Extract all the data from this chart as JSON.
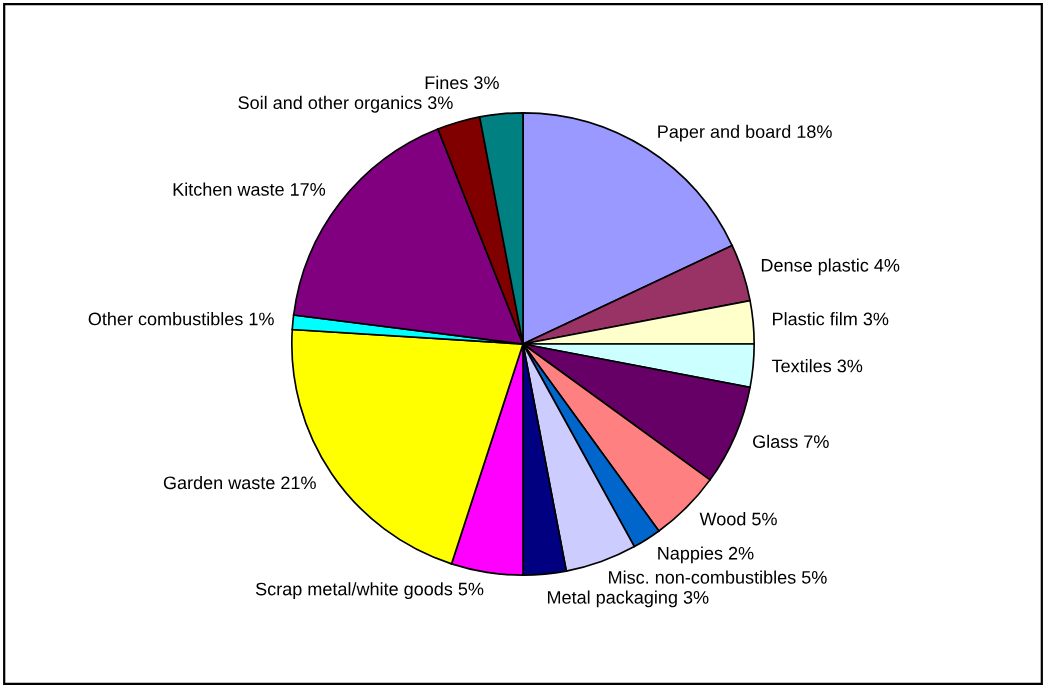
{
  "chart_data": {
    "type": "pie",
    "categories": [
      "Paper and board",
      "Dense plastic",
      "Plastic film",
      "Textiles",
      "Glass",
      "Wood",
      "Nappies",
      "Misc. non-combustibles",
      "Metal packaging",
      "Scrap metal/white goods",
      "Garden waste",
      "Other combustibles",
      "Kitchen waste",
      "Soil and other organics",
      "Fines"
    ],
    "values": [
      18,
      4,
      3,
      3,
      7,
      5,
      2,
      5,
      3,
      5,
      21,
      1,
      17,
      3,
      3
    ],
    "value_labels": [
      "18%",
      "4%",
      "3%",
      "3%",
      "7%",
      "5%",
      "2%",
      "5%",
      "3%",
      "5%",
      "21%",
      "1%",
      "17%",
      "3%",
      "3%"
    ],
    "colors": [
      "#9999ff",
      "#993366",
      "#ffffcc",
      "#ccffff",
      "#660066",
      "#ff8080",
      "#0066cc",
      "#ccccff",
      "#000080",
      "#ff00ff",
      "#ffff00",
      "#00ffff",
      "#800080",
      "#800000",
      "#008080"
    ]
  }
}
